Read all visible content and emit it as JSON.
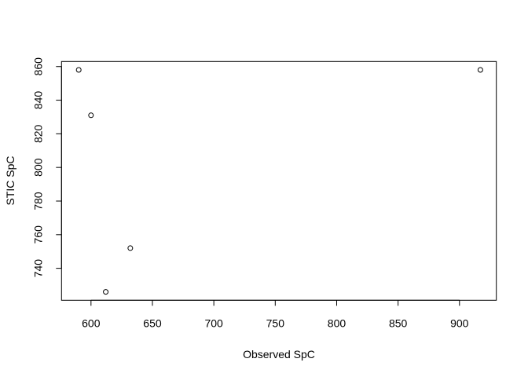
{
  "chart_data": {
    "type": "scatter",
    "title": "",
    "xlabel": "Observed SpC",
    "ylabel": "STIC SpC",
    "x": [
      590,
      600,
      612,
      632,
      917
    ],
    "y": [
      858,
      831,
      726,
      752,
      858
    ],
    "xlim": [
      576,
      930
    ],
    "ylim": [
      721,
      863
    ],
    "xticks": [
      600,
      650,
      700,
      750,
      800,
      850,
      900
    ],
    "yticks": [
      740,
      760,
      780,
      800,
      820,
      840,
      860
    ],
    "grid": false,
    "marker": "open-circle",
    "color": "#000000"
  }
}
